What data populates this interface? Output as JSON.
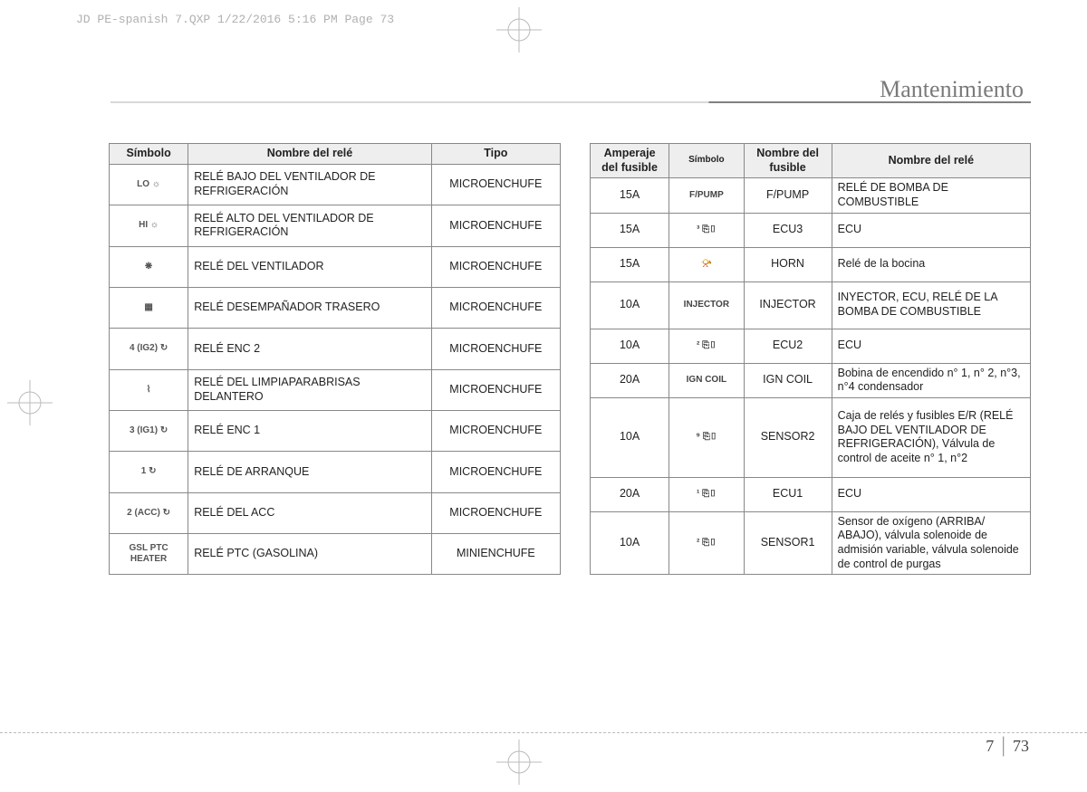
{
  "header": "JD PE-spanish 7.QXP  1/22/2016  5:16 PM  Page 73",
  "sectionTitle": "Mantenimiento",
  "pageSection": "7",
  "pageNumber": "73",
  "table1": {
    "headers": {
      "symbol": "Símbolo",
      "name": "Nombre del relé",
      "type": "Tipo"
    },
    "rows": [
      {
        "sym": "LO ☼",
        "name": "RELÉ BAJO DEL VENTILADOR DE REFRIGERACIÓN",
        "type": "MICROENCHUFE"
      },
      {
        "sym": "HI ☼",
        "name": "RELÉ ALTO DEL VENTILADOR DE REFRIGERACIÓN",
        "type": "MICROENCHUFE"
      },
      {
        "sym": "❋",
        "name": "RELÉ DEL VENTILADOR",
        "type": "MICROENCHUFE"
      },
      {
        "sym": "▦",
        "name": "RELÉ DESEMPAÑADOR TRASERO",
        "type": "MICROENCHUFE"
      },
      {
        "sym": "4 (IG2) ↻",
        "name": "RELÉ ENC 2",
        "type": "MICROENCHUFE"
      },
      {
        "sym": "⌇",
        "name": "RELÉ DEL LIMPIAPARABRISAS DELANTERO",
        "type": "MICROENCHUFE"
      },
      {
        "sym": "3 (IG1) ↻",
        "name": "RELÉ ENC 1",
        "type": "MICROENCHUFE"
      },
      {
        "sym": "1 ↻",
        "name": "RELÉ DE ARRANQUE",
        "type": "MICROENCHUFE"
      },
      {
        "sym": "2 (ACC) ↻",
        "name": "RELÉ DEL ACC",
        "type": "MICROENCHUFE"
      },
      {
        "sym": "GSL PTC HEATER",
        "name": "RELÉ PTC (GASOLINA)",
        "type": "MINIENCHUFE"
      }
    ]
  },
  "table2": {
    "headers": {
      "amp": "Amperaje del fusible",
      "symbol": "Símbolo",
      "fname": "Nombre del fusible",
      "rname": "Nombre del relé"
    },
    "rows": [
      {
        "amp": "15A",
        "sym": "F/PUMP",
        "fname": "F/PUMP",
        "rname": "RELÉ DE BOMBA DE COMBUSTIBLE",
        "cls": ""
      },
      {
        "amp": "15A",
        "sym": "³ ⎘▯",
        "fname": "ECU3",
        "rname": "ECU",
        "cls": ""
      },
      {
        "amp": "15A",
        "sym": "📯",
        "fname": "HORN",
        "rname": "Relé de la bocina",
        "cls": ""
      },
      {
        "amp": "10A",
        "sym": "INJECTOR",
        "fname": "INJECTOR",
        "rname": "INYECTOR, ECU, RELÉ DE LA BOMBA DE COMBUSTIBLE",
        "cls": "med"
      },
      {
        "amp": "10A",
        "sym": "² ⎘▯",
        "fname": "ECU2",
        "rname": "ECU",
        "cls": ""
      },
      {
        "amp": "20A",
        "sym": "IGN COIL",
        "fname": "IGN COIL",
        "rname": "Bobina de encendido n° 1, n° 2, n°3, n°4 condensador",
        "cls": ""
      },
      {
        "amp": "10A",
        "sym": "⁹ ⎘▯",
        "fname": "SENSOR2",
        "rname": "Caja de relés y fusibles E/R (RELÉ BAJO DEL VENTILADOR DE REFRIGERACIÓN), Válvula de control de aceite n° 1, n°2",
        "cls": "tall"
      },
      {
        "amp": "20A",
        "sym": "¹ ⎘▯",
        "fname": "ECU1",
        "rname": "ECU",
        "cls": ""
      },
      {
        "amp": "10A",
        "sym": "² ⎘▯",
        "fname": "SENSOR1",
        "rname": "Sensor de oxígeno (ARRIBA/ ABAJO), válvula solenoide de admisión variable, válvula solenoide de control de purgas",
        "cls": "med2"
      }
    ]
  }
}
